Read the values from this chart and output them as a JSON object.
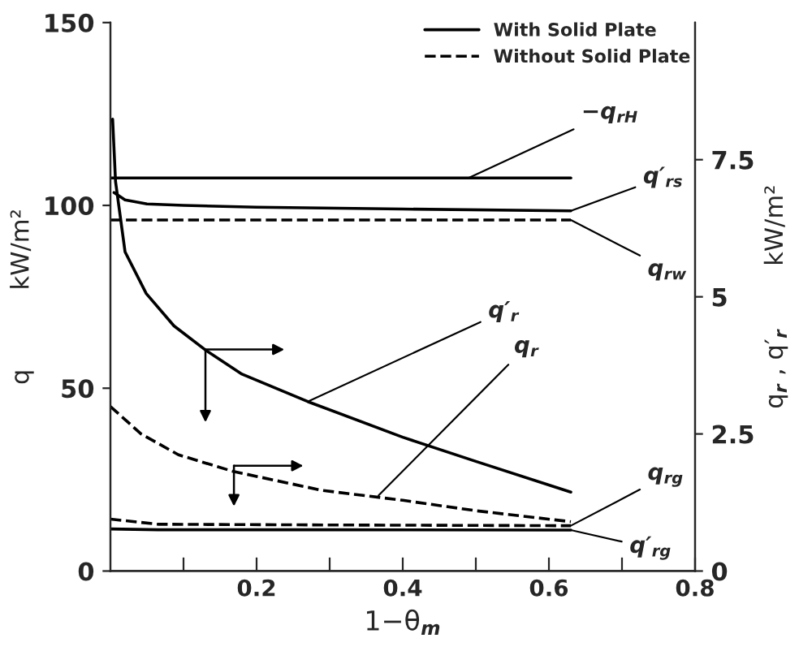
{
  "chart_data": {
    "type": "line",
    "xlabel": "1−θ$_{m}$",
    "ylabel": "q          kW/m²",
    "y2label": "q$_{r}$ , q′$_{r}$        kW/m²",
    "xlim": [
      0,
      0.8
    ],
    "xticks": [
      {
        "value": 0.1,
        "label": null
      },
      0.2,
      {
        "value": 0.3,
        "label": null
      },
      0.4,
      {
        "value": 0.5,
        "label": null
      },
      0.6,
      {
        "value": 0.7,
        "label": null
      },
      0.8
    ],
    "ylim": [
      0,
      150
    ],
    "yticks": [
      0,
      50,
      100,
      150
    ],
    "y2lim": [
      0,
      10
    ],
    "y2ticks": [
      0,
      2.5,
      5,
      7.5
    ],
    "legend": "top right",
    "grid": false,
    "marker": "none",
    "series": [
      {
        "name": "With Solid Plate",
        "color": "#000000",
        "line_style": "solid",
        "x": [
          0,
          0.63
        ],
        "values": [
          107.5,
          107.5
        ]
      },
      {
        "name": "Without Solid Plate",
        "color": "#000000",
        "line_style": "dashed",
        "x": [
          0,
          0.63
        ],
        "values": [
          96,
          96
        ]
      },
      {
        "color": "#000000",
        "line_style": "solid",
        "x": [
          0.005,
          0.02,
          0.05,
          0.1,
          0.2,
          0.4,
          0.63
        ],
        "values": [
          103.5,
          101.5,
          100.4,
          100,
          99.5,
          99,
          98.5
        ]
      },
      {
        "color": "#000000",
        "line_style": "solid",
        "axis": "y2",
        "x": [
          0.003,
          0.007,
          0.02,
          0.049,
          0.087,
          0.13,
          0.18,
          0.27,
          0.4,
          0.5,
          0.63
        ],
        "values": [
          8.24,
          7.1,
          5.82,
          5.06,
          4.47,
          4.03,
          3.59,
          3.09,
          2.44,
          2.0,
          1.44
        ]
      },
      {
        "color": "#000000",
        "line_style": "dashed",
        "axis": "y2",
        "x": [
          0,
          0.042,
          0.093,
          0.167,
          0.29,
          0.4,
          0.5,
          0.63
        ],
        "values": [
          3.0,
          2.5,
          2.12,
          1.82,
          1.47,
          1.29,
          1.1,
          0.9
        ]
      },
      {
        "color": "#000000",
        "line_style": "dashed",
        "x": [
          0,
          0.065,
          0.3,
          0.63
        ],
        "values": [
          14.2,
          12.8,
          12.6,
          12.4
        ]
      },
      {
        "color": "#000000",
        "line_style": "solid",
        "x": [
          0,
          0.065,
          0.3,
          0.63
        ],
        "values": [
          11.5,
          11.3,
          11.3,
          11.2
        ]
      }
    ],
    "annotations": [
      {
        "text": "−q$_{rH}$",
        "x": 0.49,
        "y": 107.5
      },
      {
        "text": "q′$_{rs}$",
        "x": 0.63,
        "y": 98.5
      },
      {
        "text": "q$_{rw}$",
        "x": 0.63,
        "y": 96
      },
      {
        "text": "q′$_{r}$",
        "x": 0.27,
        "y": 46.35
      },
      {
        "text": "q$_{r}$",
        "x": 0.367,
        "y": 20.7
      },
      {
        "text": "q$_{rg}$",
        "x": 0.63,
        "y": 12.4
      },
      {
        "text": "q′$_{rg}$",
        "x": 0.63,
        "y": 11.2
      }
    ]
  }
}
